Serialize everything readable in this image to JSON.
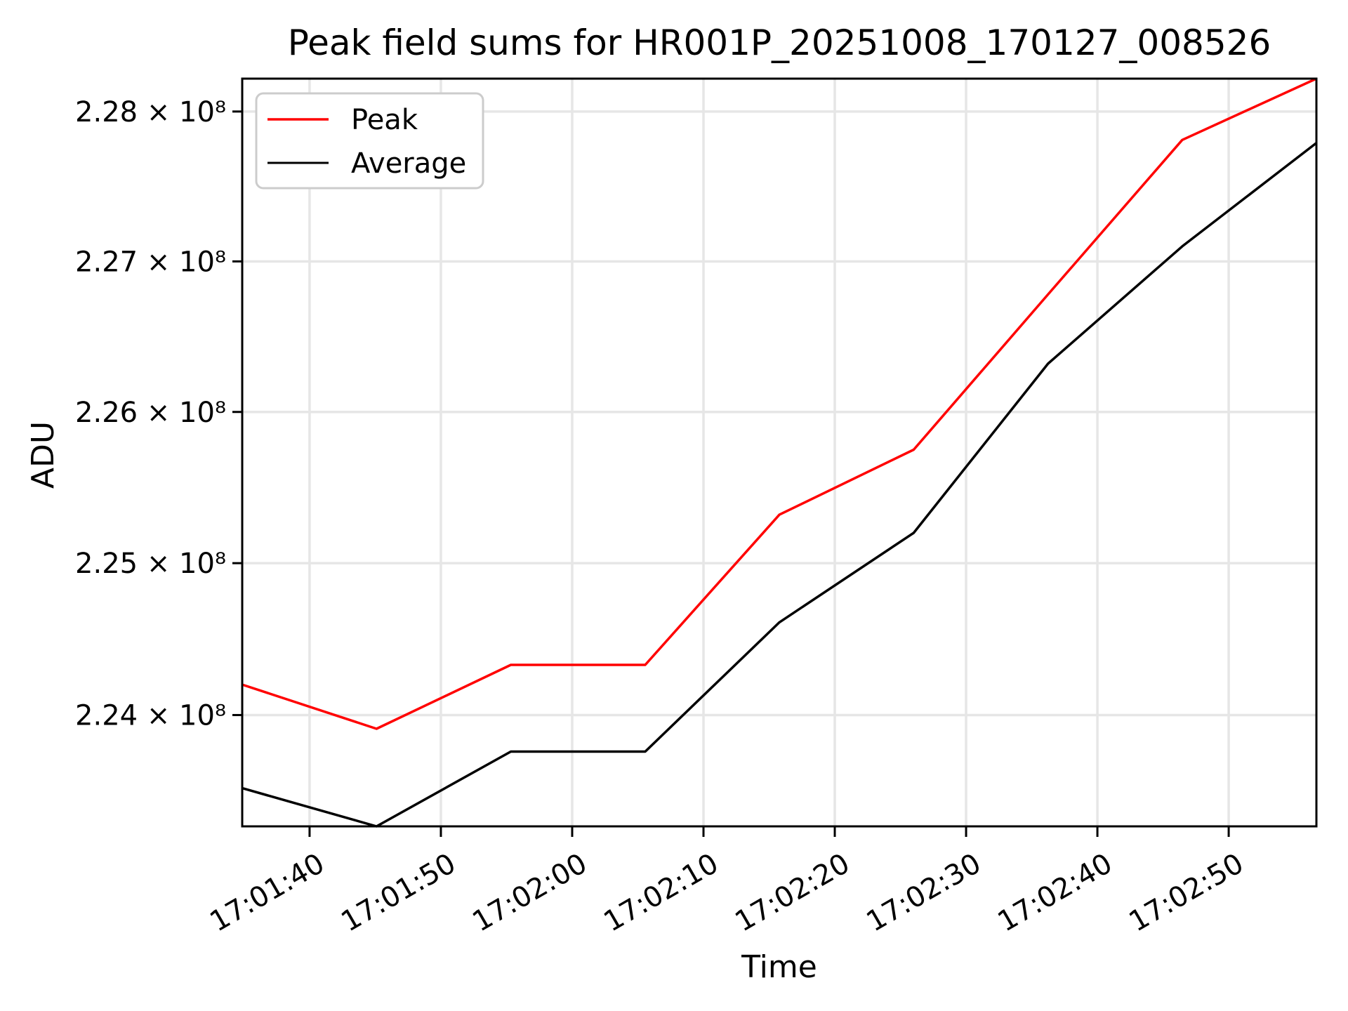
{
  "colors": {
    "background": "#ffffff",
    "spine": "#000000",
    "grid": "#e6e6e6",
    "legend_border": "#cccccc",
    "peak_line": "#ff0000",
    "average_line": "#000000"
  },
  "chart_data": {
    "type": "line",
    "title": "Peak field sums for HR001P_20251008_170127_008526",
    "xlabel": "Time",
    "ylabel": "ADU",
    "yscale": "log",
    "grid": true,
    "legend_position": "upper left",
    "x_tick_labels": [
      "17:01:40",
      "17:01:50",
      "17:02:00",
      "17:02:10",
      "17:02:20",
      "17:02:30",
      "17:02:40",
      "17:02:50"
    ],
    "x_tick_seconds": [
      100,
      110,
      120,
      130,
      140,
      150,
      160,
      170
    ],
    "y_tick_labels": [
      "2.28 × 10⁸",
      "2.27 × 10⁸",
      "2.26 × 10⁸",
      "2.25 × 10⁸",
      "2.24 × 10⁸"
    ],
    "y_tick_values_1e8": [
      2.28,
      2.27,
      2.26,
      2.25,
      2.24
    ],
    "xlim_seconds": [
      94.87,
      176.68
    ],
    "ylim_1e8": [
      2.2327,
      2.2822
    ],
    "x_times": [
      "17:01:35",
      "17:01:45",
      "17:01:55",
      "17:02:06",
      "17:02:16",
      "17:02:26",
      "17:02:36",
      "17:02:46",
      "17:02:57"
    ],
    "x_seconds": [
      94.87,
      105.1,
      115.33,
      125.56,
      135.78,
      146.01,
      156.24,
      166.46,
      176.68
    ],
    "units_note": "values are ADU × 10^8",
    "series": [
      {
        "name": "Peak",
        "color": "#ff0000",
        "values_1e8": [
          2.242,
          2.2391,
          2.2433,
          2.2433,
          2.2532,
          2.2575,
          2.2678,
          2.2781,
          2.2822
        ]
      },
      {
        "name": "Average",
        "color": "#000000",
        "values_1e8": [
          2.2352,
          2.2327,
          2.2376,
          2.2376,
          2.2461,
          2.252,
          2.2632,
          2.271,
          2.2779
        ]
      }
    ]
  }
}
